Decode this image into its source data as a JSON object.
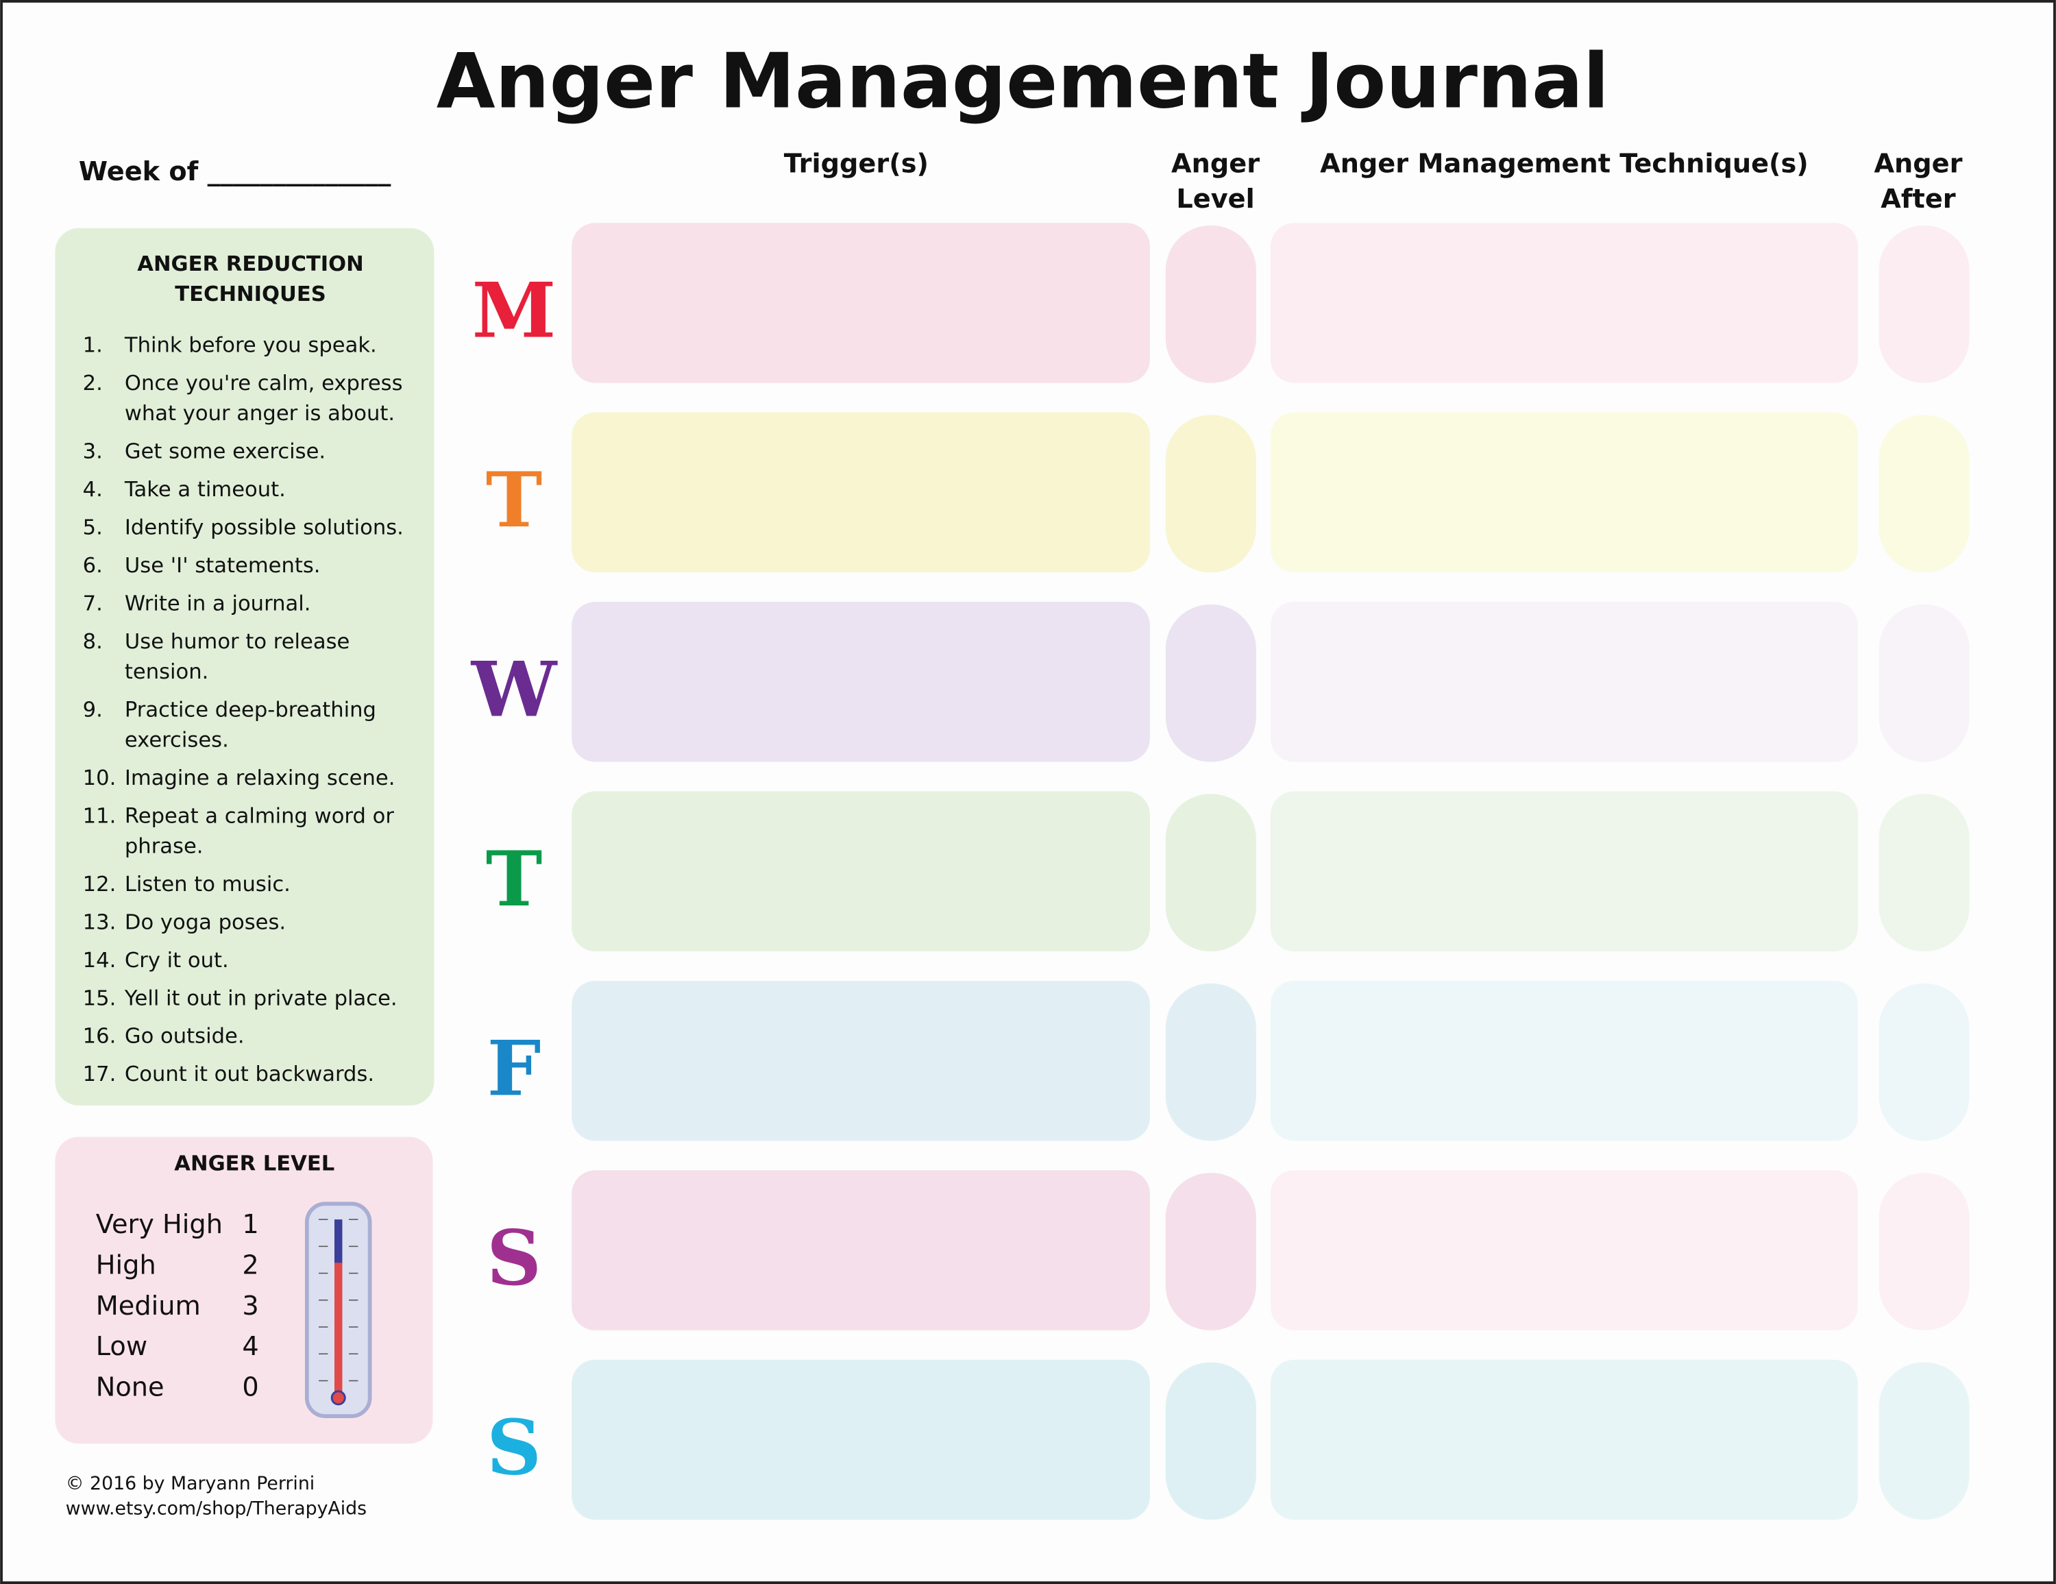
{
  "title": "Anger Management Journal",
  "week_of": "Week of ______________",
  "columns": [
    [
      "Trigger(s)"
    ],
    [
      "Anger",
      "Level"
    ],
    [
      "Anger Management Technique(s)"
    ],
    [
      "Anger",
      "After"
    ]
  ],
  "days": [
    "M",
    "T",
    "W",
    "T",
    "F",
    "S",
    "S"
  ],
  "techniques": {
    "title": [
      "ANGER REDUCTION",
      "TECHNIQUES"
    ],
    "items": [
      {
        "number": "1.",
        "text": [
          "Think before you speak."
        ]
      },
      {
        "number": "2.",
        "text": [
          "Once you're calm, express",
          "what your anger is about."
        ]
      },
      {
        "number": "3.",
        "text": [
          "Get some exercise."
        ]
      },
      {
        "number": "4.",
        "text": [
          "Take a timeout."
        ]
      },
      {
        "number": "5.",
        "text": [
          "Identify possible solutions."
        ]
      },
      {
        "number": "6.",
        "text": [
          "Use 'I' statements."
        ]
      },
      {
        "number": "7.",
        "text": [
          "Write in a journal."
        ]
      },
      {
        "number": "8.",
        "text": [
          "Use humor to release",
          "tension."
        ]
      },
      {
        "number": "9.",
        "text": [
          "Practice deep-breathing",
          "exercises."
        ]
      },
      {
        "number": "10.",
        "text": [
          "Imagine a relaxing scene."
        ]
      },
      {
        "number": "11.",
        "text": [
          "Repeat a calming word or",
          "phrase."
        ]
      },
      {
        "number": "12.",
        "text": [
          "Listen to music."
        ]
      },
      {
        "number": "13.",
        "text": [
          "Do yoga poses."
        ]
      },
      {
        "number": "14.",
        "text": [
          "Cry it out."
        ]
      },
      {
        "number": "15.",
        "text": [
          "Yell it out in private place."
        ]
      },
      {
        "number": "16.",
        "text": [
          "Go outside."
        ]
      },
      {
        "number": "17.",
        "text": [
          "Count it out backwards."
        ]
      }
    ]
  },
  "anger_level": {
    "title": "ANGER LEVEL",
    "rows": [
      {
        "label": "Very High",
        "value": 1
      },
      {
        "label": "High",
        "value": 2
      },
      {
        "label": "Medium",
        "value": 3
      },
      {
        "label": "Low",
        "value": 4
      },
      {
        "label": "None",
        "value": 0
      }
    ]
  },
  "footer": [
    "© 2016 by Maryann Perrini",
    "www.etsy.com/shop/TherapyAids"
  ]
}
